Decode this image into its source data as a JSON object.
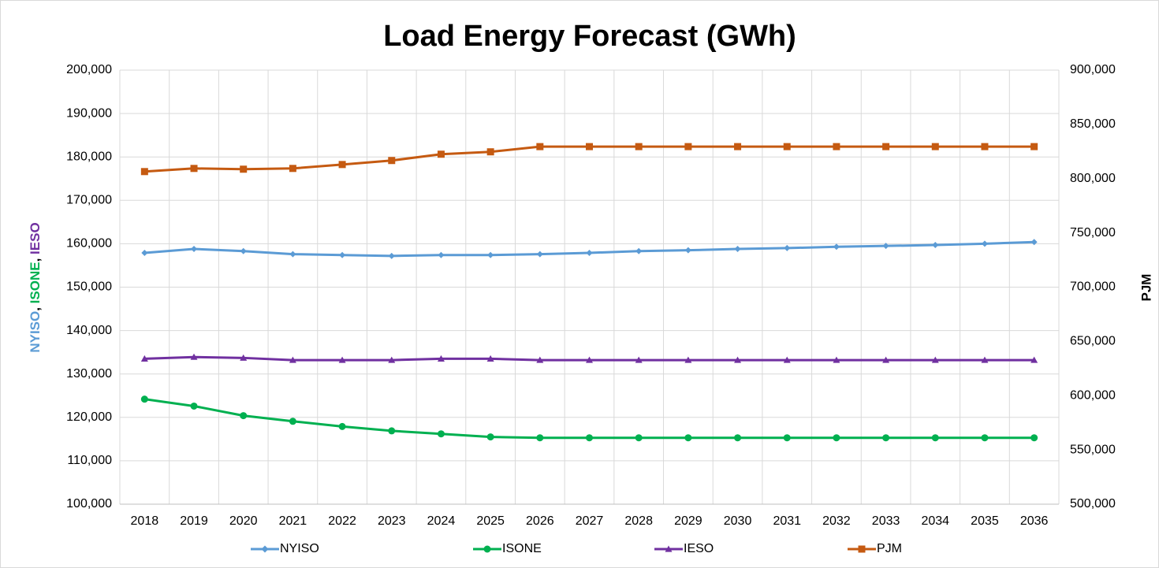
{
  "chart_data": {
    "type": "line",
    "title": "Load Energy Forecast (GWh)",
    "y_label_parts": [
      {
        "text": "NYISO",
        "color": "#5b9bd5"
      },
      {
        "text": ", ",
        "color": "#000000"
      },
      {
        "text": "ISONE",
        "color": "#00b050"
      },
      {
        "text": ", ",
        "color": "#000000"
      },
      {
        "text": "IESO",
        "color": "#7030a0"
      }
    ],
    "y2_label": "PJM",
    "y2_label_color": "#c55a11",
    "categories": [
      "2018",
      "2019",
      "2020",
      "2021",
      "2022",
      "2023",
      "2024",
      "2025",
      "2026",
      "2027",
      "2028",
      "2029",
      "2030",
      "2031",
      "2032",
      "2033",
      "2034",
      "2035",
      "2036"
    ],
    "series": [
      {
        "name": "NYISO",
        "color": "#5b9bd5",
        "marker": "diamond",
        "axis": "y",
        "values": [
          157900,
          158800,
          158300,
          157600,
          157400,
          157200,
          157400,
          157400,
          157600,
          157900,
          158300,
          158500,
          158800,
          159000,
          159300,
          159500,
          159700,
          160000,
          160400
        ]
      },
      {
        "name": "ISONE",
        "color": "#00b050",
        "marker": "circle",
        "axis": "y",
        "values": [
          124200,
          122600,
          120400,
          119100,
          117900,
          116900,
          116200,
          115500,
          115300,
          115300,
          115300,
          115300,
          115300,
          115300,
          115300,
          115300,
          115300,
          115300,
          115300
        ]
      },
      {
        "name": "IESO",
        "color": "#7030a0",
        "marker": "triangle",
        "axis": "y",
        "values": [
          133500,
          133900,
          133700,
          133200,
          133200,
          133200,
          133500,
          133500,
          133200,
          133200,
          133200,
          133200,
          133200,
          133200,
          133200,
          133200,
          133200,
          133200,
          133200
        ]
      },
      {
        "name": "PJM",
        "color": "#c55a11",
        "marker": "square",
        "axis": "y2",
        "values": [
          806500,
          809400,
          808700,
          809400,
          813000,
          816700,
          822500,
          824700,
          829500,
          829500,
          829500,
          829500,
          829500,
          829500,
          829500,
          829500,
          829500,
          829500,
          829500
        ]
      }
    ],
    "ylim": [
      100000,
      200000
    ],
    "yticks": [
      {
        "value": 100000,
        "label": "100,000"
      },
      {
        "value": 110000,
        "label": "110,000"
      },
      {
        "value": 120000,
        "label": "120,000"
      },
      {
        "value": 130000,
        "label": "130,000"
      },
      {
        "value": 140000,
        "label": "140,000"
      },
      {
        "value": 150000,
        "label": "150,000"
      },
      {
        "value": 160000,
        "label": "160,000"
      },
      {
        "value": 170000,
        "label": "170,000"
      },
      {
        "value": 180000,
        "label": "180,000"
      },
      {
        "value": 190000,
        "label": "190,000"
      },
      {
        "value": 200000,
        "label": "200,000"
      }
    ],
    "y2lim": [
      500000,
      900000
    ],
    "y2ticks": [
      {
        "value": 500000,
        "label": "500,000"
      },
      {
        "value": 550000,
        "label": "550,000"
      },
      {
        "value": 600000,
        "label": "600,000"
      },
      {
        "value": 650000,
        "label": "650,000"
      },
      {
        "value": 700000,
        "label": "700,000"
      },
      {
        "value": 750000,
        "label": "750,000"
      },
      {
        "value": 800000,
        "label": "800,000"
      },
      {
        "value": 850000,
        "label": "850,000"
      },
      {
        "value": 900000,
        "label": "900,000"
      }
    ],
    "grid": true,
    "x_grid": true,
    "legend": "bottom"
  }
}
